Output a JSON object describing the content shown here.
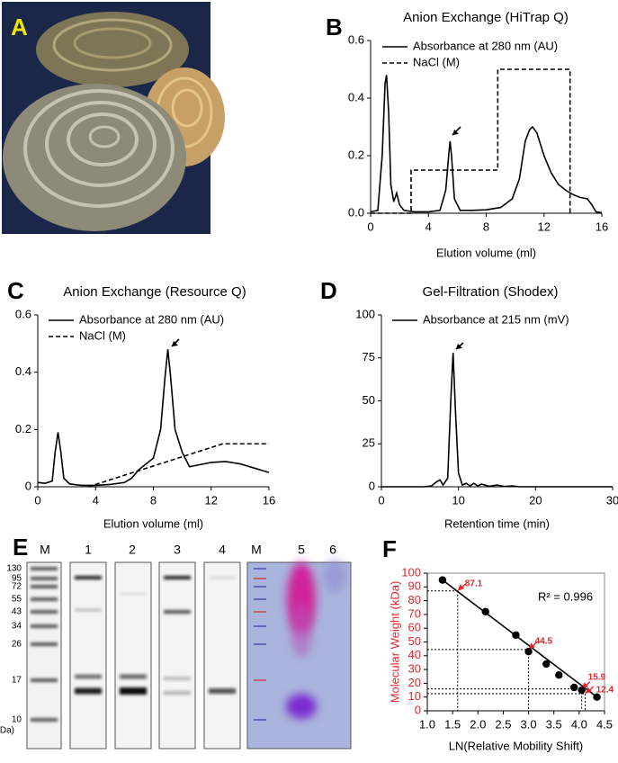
{
  "figure": {
    "photo_label": "A",
    "gel_label": "E",
    "gel": {
      "lanes": [
        "M",
        "1",
        "2",
        "3",
        "4",
        "M",
        "5",
        "6"
      ],
      "marker_sizes": [
        "130",
        "95",
        "72",
        "55",
        "43",
        "34",
        "26",
        "17",
        "10",
        "(kDa)"
      ]
    }
  },
  "chart_data": [
    {
      "type": "line",
      "label": "B",
      "title": "Anion Exchange (HiTrap Q)",
      "xlabel": "Elution volume (ml)",
      "xlim": [
        0,
        16
      ],
      "xticks": [
        0,
        4,
        8,
        12,
        16
      ],
      "ylim": [
        0,
        0.6
      ],
      "yticks": [
        {
          "value": 0,
          "label": "0.0"
        },
        0.2,
        0.4,
        0.6
      ],
      "series": [
        {
          "name": "Absorbance at 280 nm (AU)",
          "color": "#000000",
          "line_style": "solid",
          "x": [
            0,
            0.5,
            0.8,
            1.0,
            1.1,
            1.25,
            1.4,
            1.6,
            1.8,
            2.0,
            2.3,
            3,
            4,
            4.8,
            5.2,
            5.4,
            5.5,
            5.6,
            5.8,
            6.2,
            7,
            8,
            9,
            9.8,
            10.3,
            10.7,
            11,
            11.2,
            11.5,
            12,
            12.5,
            13,
            13.5,
            14,
            14.5,
            15,
            15.3,
            15.6,
            16
          ],
          "values": [
            0.005,
            0.01,
            0.2,
            0.45,
            0.48,
            0.35,
            0.1,
            0.04,
            0.07,
            0.03,
            0.01,
            0.005,
            0.005,
            0.01,
            0.08,
            0.2,
            0.25,
            0.2,
            0.05,
            0.01,
            0.01,
            0.012,
            0.02,
            0.05,
            0.12,
            0.25,
            0.29,
            0.3,
            0.28,
            0.2,
            0.14,
            0.1,
            0.08,
            0.065,
            0.055,
            0.05,
            0.03,
            0.005,
            0.002
          ]
        },
        {
          "name": "NaCl (M)",
          "color": "#000000",
          "line_style": "dashed",
          "x": [
            0,
            2.8,
            2.8,
            8.8,
            8.8,
            13.8,
            13.8
          ],
          "values": [
            0,
            0,
            0.15,
            0.15,
            0.5,
            0.5,
            0
          ]
        }
      ]
    },
    {
      "type": "line",
      "label": "C",
      "title": "Anion Exchange (Resource Q)",
      "xlabel": "Elution volume (ml)",
      "xlim": [
        0,
        16
      ],
      "xticks": [
        0,
        4,
        8,
        12,
        16
      ],
      "ylim": [
        0,
        0.6
      ],
      "yticks": [
        0,
        0.2,
        0.4,
        0.6
      ],
      "series": [
        {
          "name": "Absorbance at 280 nm (AU)",
          "color": "#000000",
          "line_style": "solid",
          "x": [
            0,
            0.5,
            1.0,
            1.2,
            1.4,
            1.6,
            1.8,
            2.2,
            3,
            4,
            5,
            6,
            6.5,
            7,
            7.5,
            8,
            8.5,
            8.8,
            9.0,
            9.2,
            9.5,
            10,
            10.5,
            11,
            12,
            13,
            14,
            15,
            16
          ],
          "values": [
            0.015,
            0.012,
            0.02,
            0.12,
            0.19,
            0.12,
            0.03,
            0.01,
            0.005,
            0.005,
            0.008,
            0.015,
            0.03,
            0.06,
            0.08,
            0.1,
            0.2,
            0.38,
            0.48,
            0.38,
            0.2,
            0.12,
            0.07,
            0.075,
            0.085,
            0.088,
            0.08,
            0.065,
            0.05
          ]
        },
        {
          "name": "NaCl (M)",
          "color": "#000000",
          "line_style": "dashed",
          "x": [
            3.5,
            12.8,
            16
          ],
          "values": [
            0,
            0.15,
            0.15
          ]
        }
      ]
    },
    {
      "type": "line",
      "label": "D",
      "title": "Gel-Filtration (Shodex)",
      "xlabel": "Retention time (min)",
      "xlim": [
        0,
        30
      ],
      "xticks": [
        0,
        10,
        20,
        30
      ],
      "ylim": [
        0,
        100
      ],
      "yticks": [
        0,
        25,
        50,
        75,
        100
      ],
      "series": [
        {
          "name": "Absorbance at 215 nm (mV)",
          "color": "#000000",
          "line_style": "solid",
          "x": [
            0,
            5.5,
            6.5,
            7.2,
            7.6,
            8.0,
            8.6,
            9.0,
            9.3,
            9.6,
            10,
            10.5,
            11,
            11.5,
            12,
            12.5,
            13,
            14,
            15,
            16,
            17,
            18,
            30
          ],
          "values": [
            0,
            0,
            0.5,
            3,
            4,
            1,
            5,
            50,
            78,
            45,
            8,
            1,
            2,
            0.5,
            2,
            0.5,
            1.5,
            0.3,
            1,
            0.2,
            0.5,
            0,
            0
          ]
        }
      ]
    },
    {
      "type": "scatter",
      "label": "F",
      "xlabel": "LN(Relative Mobility Shift)",
      "ylabel": "Molecular Weight (kDa)",
      "ylabel_color": "#e0262b",
      "color": "#000000",
      "annotation": "R² = 0.996",
      "xlim": [
        1,
        4.5
      ],
      "xticks": [
        {
          "value": 1,
          "label": "1.0"
        },
        1.5,
        {
          "value": 2,
          "label": "2.0"
        },
        2.5,
        {
          "value": 3,
          "label": "3.0"
        },
        3.5,
        {
          "value": 4,
          "label": "4.0"
        },
        4.5
      ],
      "ylim": [
        0,
        100
      ],
      "yticks": [
        0,
        10,
        20,
        30,
        40,
        50,
        60,
        70,
        80,
        90,
        100
      ],
      "x": [
        1.3,
        2.15,
        2.75,
        3.0,
        3.35,
        3.6,
        3.9,
        4.05,
        4.35
      ],
      "values": [
        95,
        72,
        55,
        43,
        34,
        26,
        17,
        15,
        10
      ],
      "estimates": {
        "color": "#e0262b",
        "x": [
          1.6,
          3.0,
          4.05,
          4.12
        ],
        "values": [
          87.1,
          44.5,
          15.9,
          12.4
        ]
      }
    }
  ]
}
